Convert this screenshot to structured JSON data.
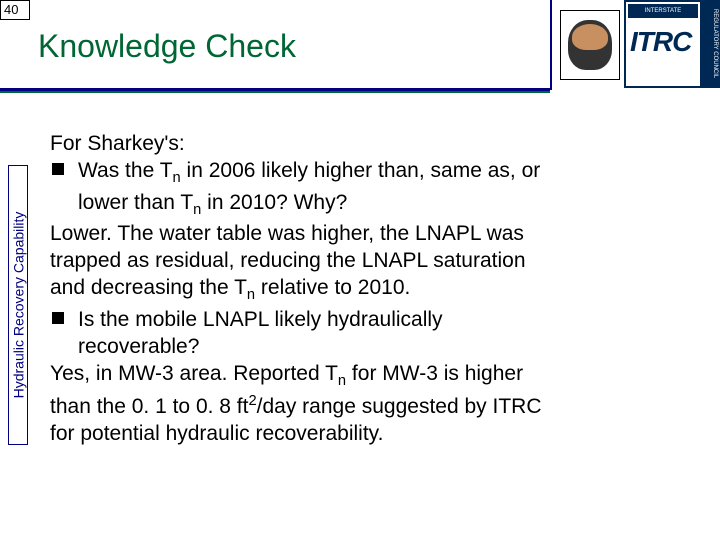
{
  "page_number": "40",
  "title": "Knowledge Check",
  "sidebar_label": "Hydraulic Recovery Capability",
  "logo": {
    "banner_text": "INTERSTATE",
    "main_text": "ITRC",
    "side_text": "REGULATORY COUNCIL"
  },
  "content": {
    "intro": "For Sharkey's:",
    "q1_pre": "Was the T",
    "q1_mid1": " in 2006 likely higher than, same as, or",
    "q1_line2_pre": "lower than T",
    "q1_line2_post": " in 2010?  Why?",
    "a1_l1": "Lower.  The water table was higher, the LNAPL was",
    "a1_l2": "trapped as residual, reducing the LNAPL saturation",
    "a1_l3_pre": "and decreasing the T",
    "a1_l3_post": " relative to 2010.",
    "q2_l1": "Is the mobile LNAPL likely hydraulically",
    "q2_l2": "recoverable?",
    "a2_l1_pre": "Yes, in MW-3 area.  Reported T",
    "a2_l1_post": " for MW-3 is higher",
    "a2_l2_pre": "than the 0. 1 to 0. 8 ft",
    "a2_l2_post": "/day range suggested by ITRC",
    "a2_l3": "for potential hydraulic recoverability.",
    "sub_n": "n",
    "sup_2": "2"
  },
  "colors": {
    "title_color": "#006633",
    "accent_color": "#000080"
  }
}
